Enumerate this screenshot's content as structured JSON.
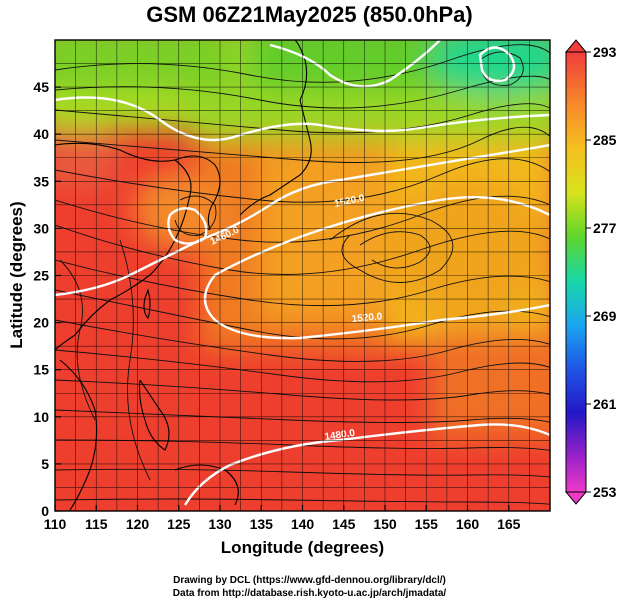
{
  "title": "GSM 06Z21May2025 (850.0hPa)",
  "axes": {
    "xlabel": "Longitude (degrees)",
    "ylabel": "Latitude  (degrees)",
    "x_ticks": [
      "110",
      "115",
      "120",
      "125",
      "130",
      "135",
      "140",
      "145",
      "150",
      "155",
      "160",
      "165"
    ],
    "y_ticks": [
      "0",
      "5",
      "10",
      "15",
      "20",
      "25",
      "30",
      "35",
      "40",
      "45"
    ]
  },
  "colorbar": {
    "labels": [
      "293",
      "285",
      "277",
      "269",
      "261",
      "253"
    ]
  },
  "contour_labels": [
    "1520.0",
    "1460.0",
    "1520.0",
    "1480.0"
  ],
  "credits": {
    "line1": "Drawing by DCL (https://www.gfd-dennou.org/library/dcl/)",
    "line2": "Data from http://database.rish.kyoto-u.ac.jp/arch/jmadata/"
  },
  "chart_data": {
    "type": "heatmap",
    "title": "GSM 06Z21May2025 (850.0hPa)",
    "xlabel": "Longitude (degrees)",
    "ylabel": "Latitude  (degrees)",
    "xlim": [
      110,
      170
    ],
    "ylim": [
      0,
      50
    ],
    "colorbar_range": [
      253,
      293
    ],
    "colorbar_ticks": [
      293,
      285,
      277,
      269,
      261,
      253
    ],
    "grid": true,
    "overlays": [
      "streamlines",
      "geopotential height contours (white)",
      "coastlines"
    ]
  }
}
